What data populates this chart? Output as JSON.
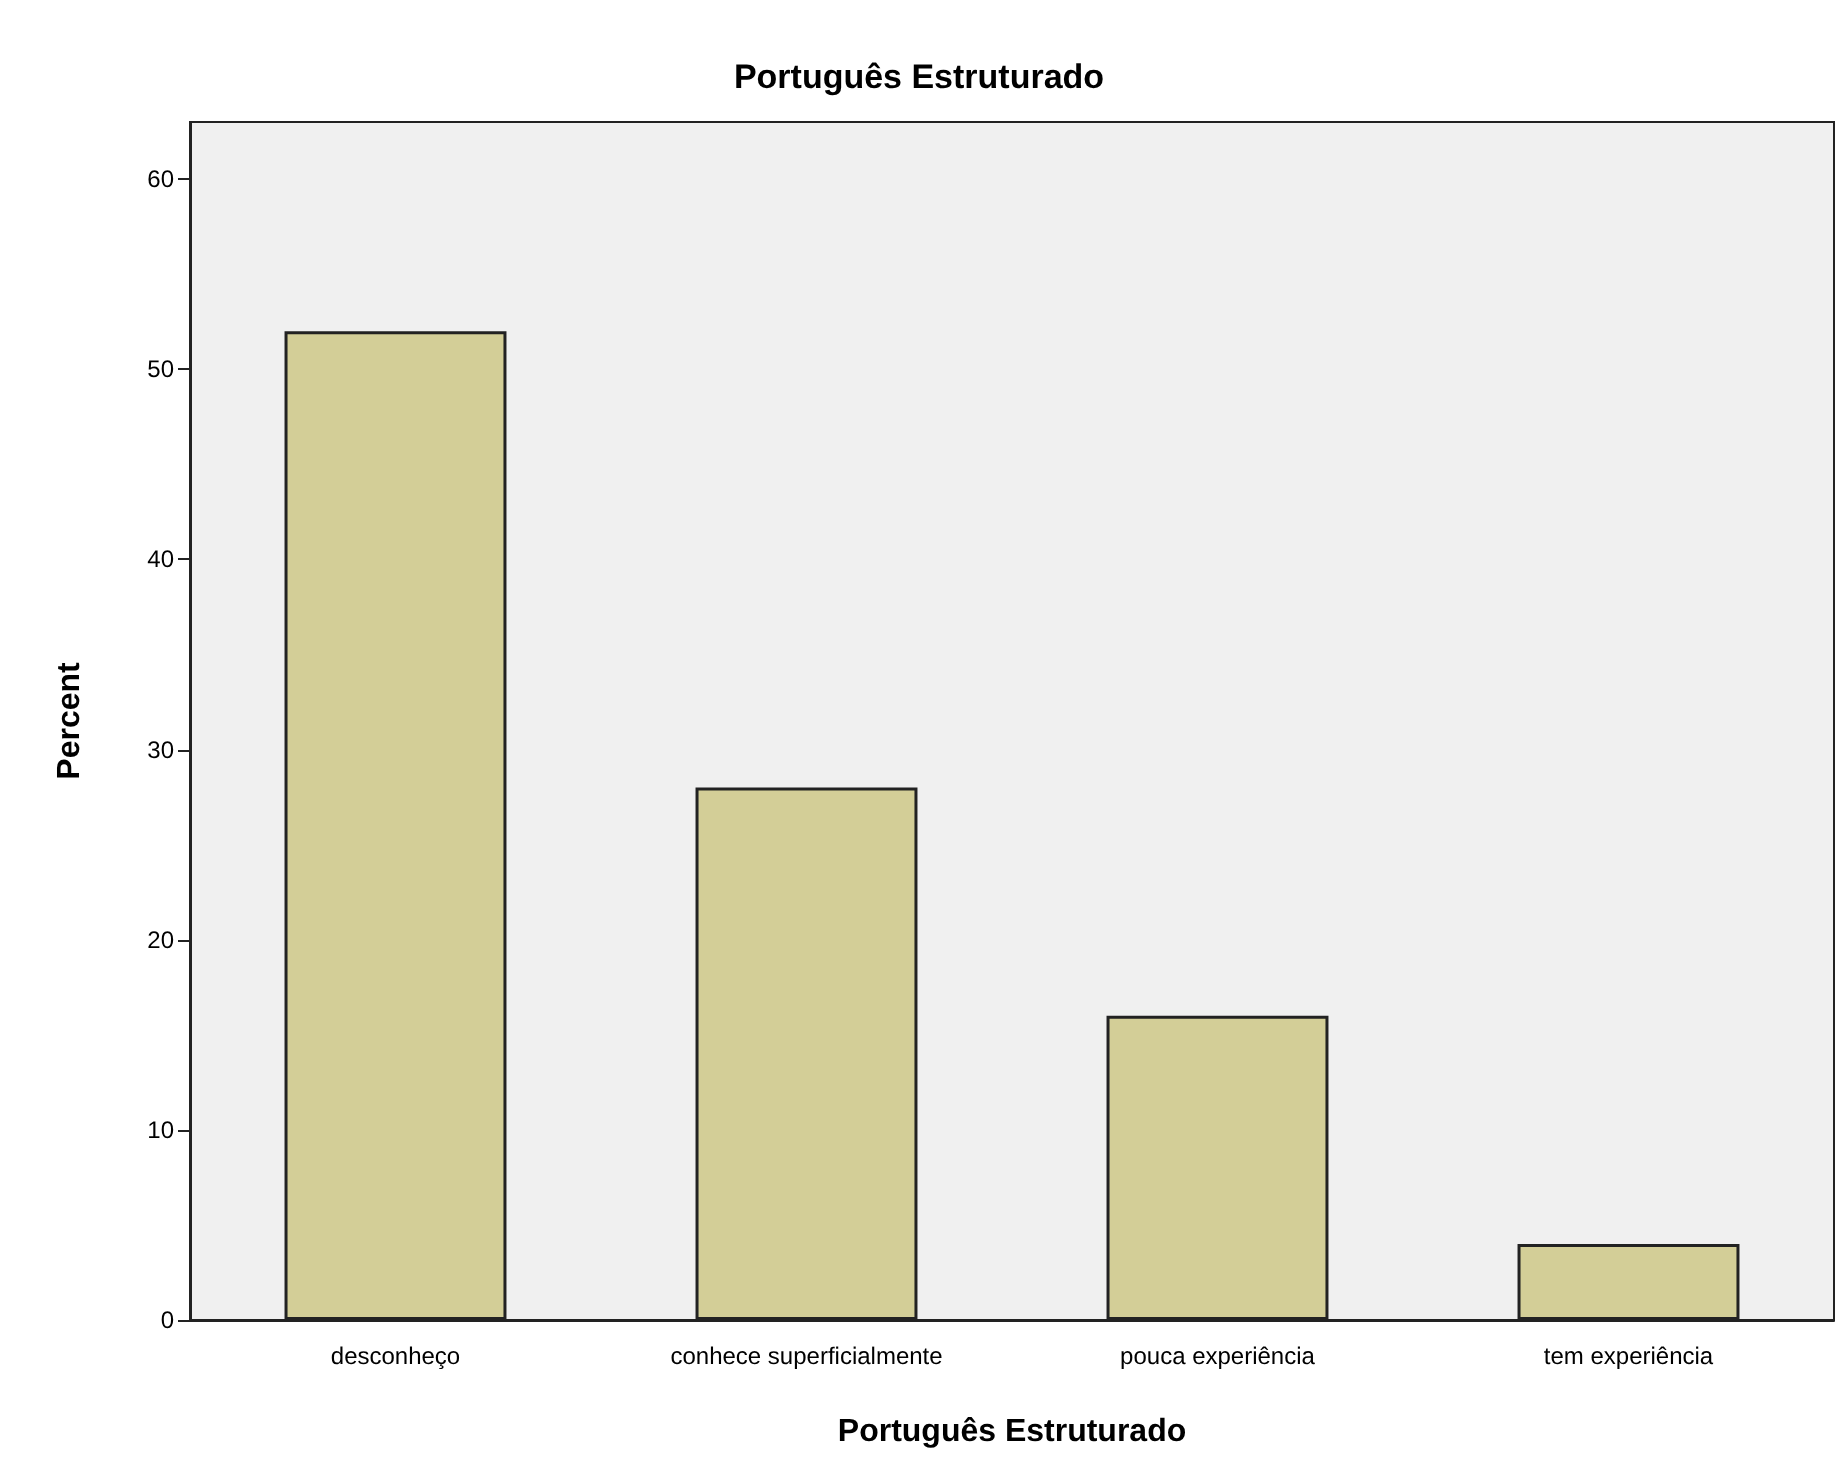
{
  "chart_data": {
    "type": "bar",
    "title": "Português Estruturado",
    "xlabel": "Português Estruturado",
    "ylabel": "Percent",
    "categories": [
      "desconheço",
      "conhece superficialmente",
      "pouca experiência",
      "tem experiência"
    ],
    "values": [
      52,
      28,
      16,
      4
    ],
    "color": "#d3ce97",
    "ylim": [
      0,
      63
    ],
    "yticks": [
      0,
      10,
      20,
      30,
      40,
      50,
      60
    ],
    "grid": false
  }
}
